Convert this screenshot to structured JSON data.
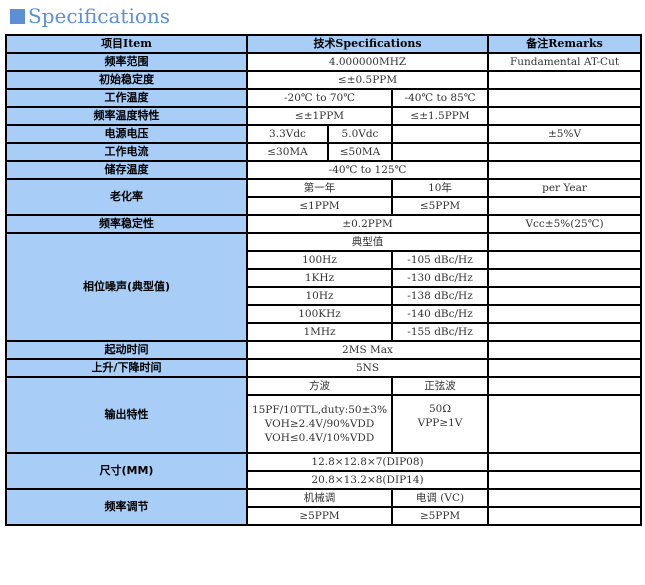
{
  "title": "Specifications",
  "colors": {
    "header_bg": "#a8cdf7",
    "title": "#5b8fd6"
  },
  "header": {
    "item": "项目Item",
    "spec": "技术Specifications",
    "remarks": "备注Remarks"
  },
  "rows": {
    "freq_range": {
      "label": "频率范围",
      "value": "4.000000MHZ",
      "remark": "Fundamental AT-Cut"
    },
    "init_stab": {
      "label": "初始稳定度",
      "value": "≤±0.5PPM"
    },
    "op_temp": {
      "label": "工作温度",
      "v1": "-20℃ to 70℃",
      "v2": "-40℃ to 85℃"
    },
    "freq_temp": {
      "label": "频率温度特性",
      "v1": "≤±1PPM",
      "v2": "≤±1.5PPM"
    },
    "voltage": {
      "label": "电源电压",
      "v1": "3.3Vdc",
      "v2": "5.0Vdc",
      "remark": "±5%V"
    },
    "current": {
      "label": "工作电流",
      "v1": "≤30MA",
      "v2": "≤50MA"
    },
    "storage": {
      "label": "储存温度",
      "value": "-40℃ to 125℃"
    },
    "aging": {
      "label": "老化率",
      "h1": "第一年",
      "h2": "10年",
      "remark": "per Year",
      "v1": "≤1PPM",
      "v2": "≤5PPM"
    },
    "freq_stab": {
      "label": "频率稳定性",
      "value": "±0.2PPM",
      "remark": "Vcc±5%(25℃)"
    },
    "phase_noise": {
      "label": "相位噪声(典型值)",
      "sub": "典型值",
      "items": [
        {
          "f": "100Hz",
          "v": "-105 dBc/Hz"
        },
        {
          "f": "1KHz",
          "v": "-130 dBc/Hz"
        },
        {
          "f": "10Hz",
          "v": "-138 dBc/Hz"
        },
        {
          "f": "100KHz",
          "v": "-140 dBc/Hz"
        },
        {
          "f": "1MHz",
          "v": "-155 dBc/Hz"
        }
      ]
    },
    "startup": {
      "label": "起动时间",
      "value": "2MS Max"
    },
    "rise_fall": {
      "label": "上升/下降时间",
      "value": "5NS"
    },
    "output": {
      "label": "输出特性",
      "h1": "方波",
      "h2": "正弦波",
      "sq": [
        "15PF/10TTL,duty:50±3%",
        "VOH≥2.4V/90%VDD",
        "VOH≤0.4V/10%VDD"
      ],
      "sine": [
        "50Ω",
        "VPP≥1V"
      ]
    },
    "size": {
      "label": "尺寸(MM)",
      "v1": "12.8×12.8×7(DIP08)",
      "v2": "20.8×13.2×8(DIP14)"
    },
    "adjust": {
      "label": "频率调节",
      "h1": "机械调",
      "h2": "电调 (VC)",
      "v1": "≥5PPM",
      "v2": "≥5PPM"
    }
  }
}
